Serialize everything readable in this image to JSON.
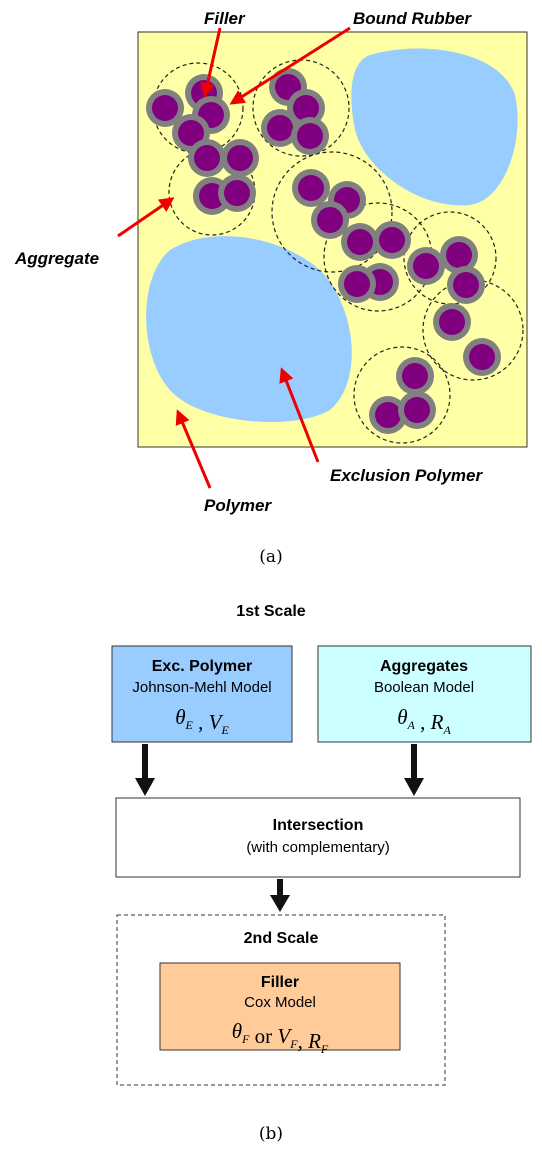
{
  "panel_a": {
    "labels": {
      "filler": "Filler",
      "bound_rubber": "Bound Rubber",
      "aggregate": "Aggregate",
      "exclusion_polymer": "Exclusion Polymer",
      "polymer": "Polymer"
    },
    "caption": "(a)"
  },
  "panel_b": {
    "title": "1st Scale",
    "boxes": [
      {
        "title": "Exc. Polymer",
        "subtitle": "Johnson-Mehl Model",
        "formula": [
          {
            "text": "θ",
            "sub": "E"
          },
          {
            "text": " ,  "
          },
          {
            "text": "V",
            "sub": "E"
          }
        ]
      },
      {
        "title": "Aggregates",
        "subtitle": "Boolean Model",
        "formula": [
          {
            "text": "θ",
            "sub": "A"
          },
          {
            "text": " ,  "
          },
          {
            "text": "R",
            "sub": "A"
          }
        ]
      },
      {
        "title": "Intersection",
        "subtitle": "(with complementary)"
      },
      {
        "title": "Filler",
        "subtitle": "Cox Model",
        "formula": [
          {
            "text": "θ",
            "sub": "F"
          },
          {
            "text": " or "
          },
          {
            "text": "V",
            "sub": "F"
          },
          {
            "text": ",  "
          },
          {
            "text": "R",
            "sub": "F"
          }
        ]
      }
    ],
    "second_scale": "2nd Scale",
    "caption": "(b)"
  }
}
